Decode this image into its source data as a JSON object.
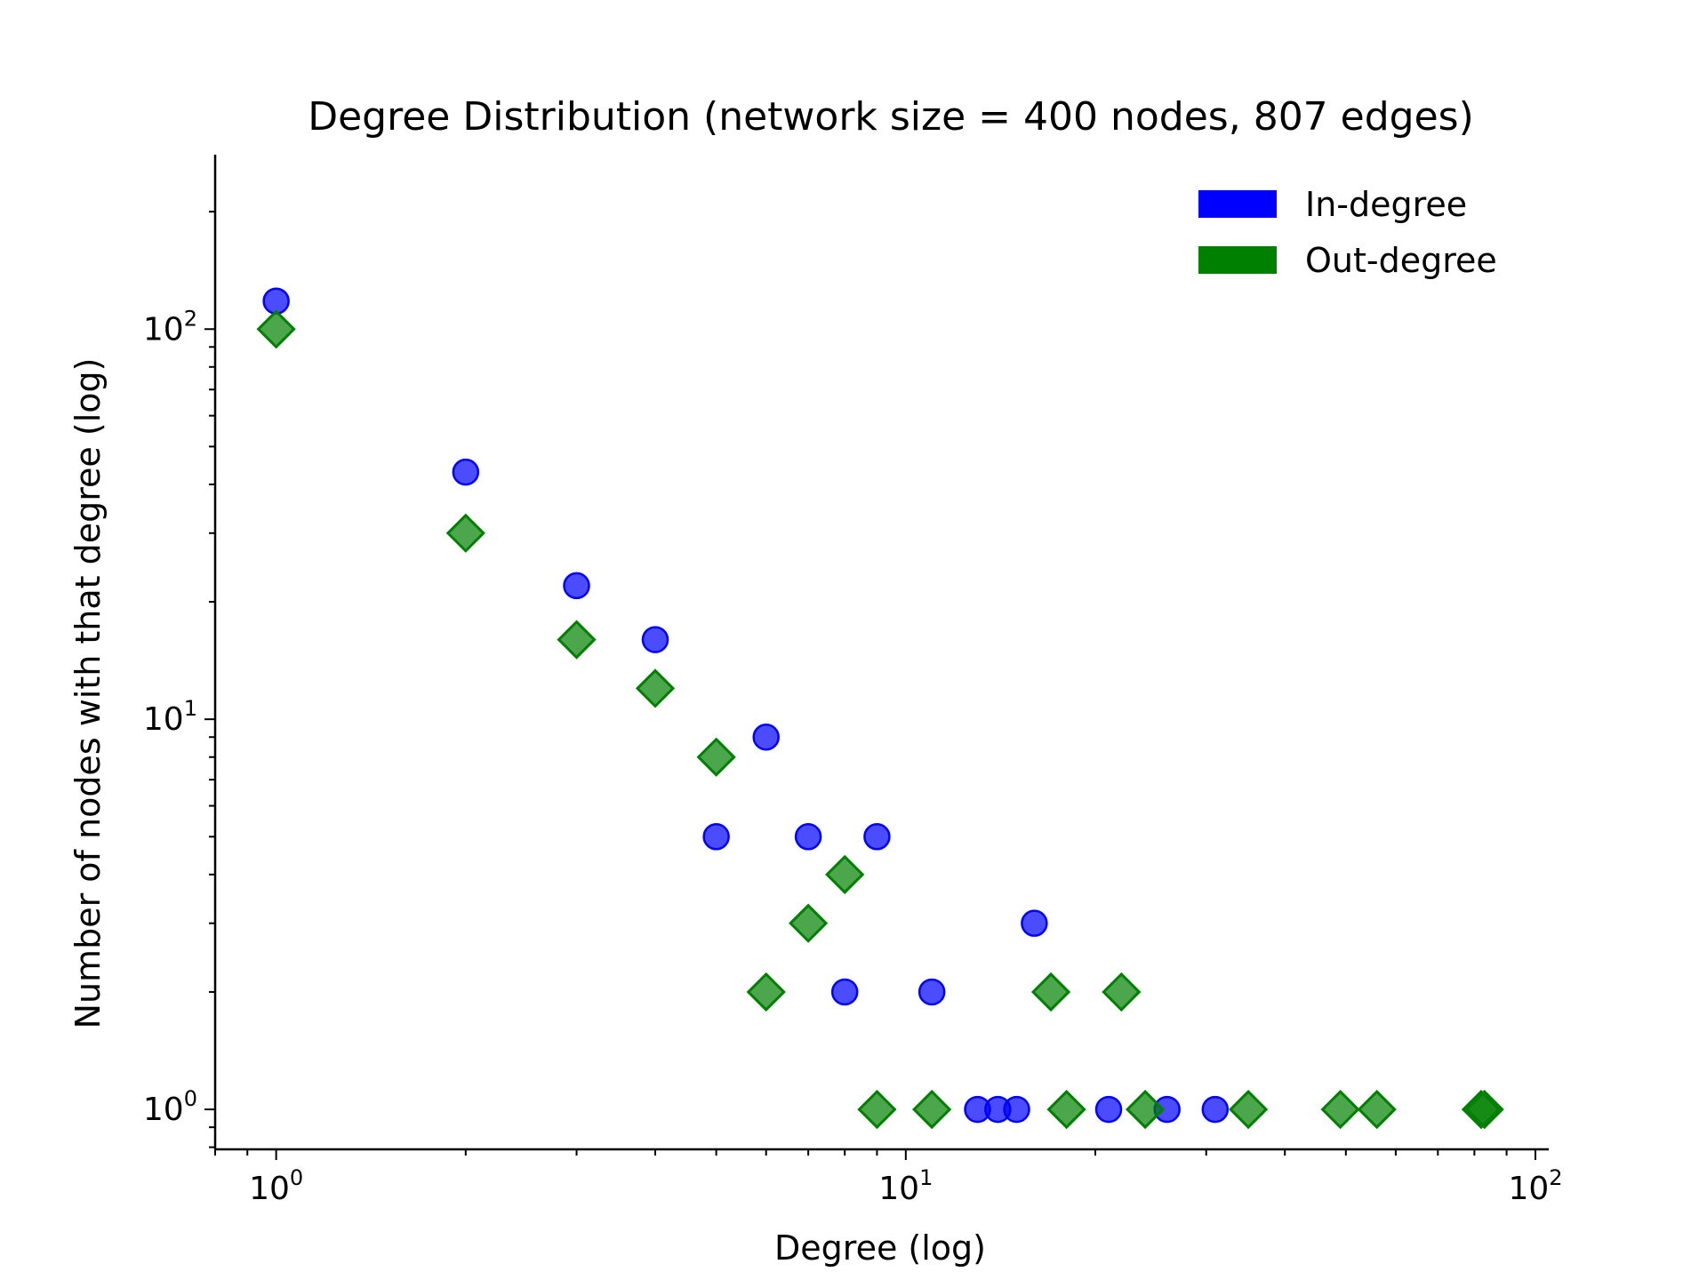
{
  "chart_data": {
    "type": "scatter",
    "title": "Degree Distribution (network size = 400 nodes, 807 edges)",
    "xlabel": "Degree (log)",
    "ylabel": "Number of nodes with that degree (log)",
    "xscale": "log",
    "yscale": "log",
    "xlim": [
      0.8,
      105
    ],
    "ylim": [
      0.79,
      280
    ],
    "xticks": [
      {
        "value": 1,
        "base": "10",
        "exp": "0"
      },
      {
        "value": 10,
        "base": "10",
        "exp": "1"
      },
      {
        "value": 100,
        "base": "10",
        "exp": "2"
      }
    ],
    "yticks": [
      {
        "value": 1,
        "base": "10",
        "exp": "0"
      },
      {
        "value": 10,
        "base": "10",
        "exp": "1"
      },
      {
        "value": 100,
        "base": "10",
        "exp": "2"
      }
    ],
    "grid": false,
    "legend_position": "top-right",
    "series": [
      {
        "name": "In-degree",
        "marker": "circle",
        "color": "#0000ff",
        "points": [
          [
            1,
            118
          ],
          [
            2,
            43
          ],
          [
            3,
            22
          ],
          [
            4,
            16
          ],
          [
            5,
            5
          ],
          [
            6,
            9
          ],
          [
            7,
            5
          ],
          [
            8,
            2
          ],
          [
            9,
            5
          ],
          [
            11,
            2
          ],
          [
            13,
            1
          ],
          [
            14,
            1
          ],
          [
            15,
            1
          ],
          [
            16,
            3
          ],
          [
            21,
            1
          ],
          [
            26,
            1
          ],
          [
            31,
            1
          ]
        ]
      },
      {
        "name": "Out-degree",
        "marker": "diamond",
        "color": "#008000",
        "points": [
          [
            1,
            100
          ],
          [
            2,
            30
          ],
          [
            3,
            16
          ],
          [
            4,
            12
          ],
          [
            5,
            8
          ],
          [
            6,
            2
          ],
          [
            7,
            3
          ],
          [
            8,
            4
          ],
          [
            9,
            1
          ],
          [
            11,
            1
          ],
          [
            17,
            2
          ],
          [
            18,
            1
          ],
          [
            22,
            2
          ],
          [
            24,
            1
          ],
          [
            35,
            1
          ],
          [
            49,
            1
          ],
          [
            56,
            1
          ],
          [
            82,
            1
          ],
          [
            83,
            1
          ]
        ]
      }
    ]
  }
}
